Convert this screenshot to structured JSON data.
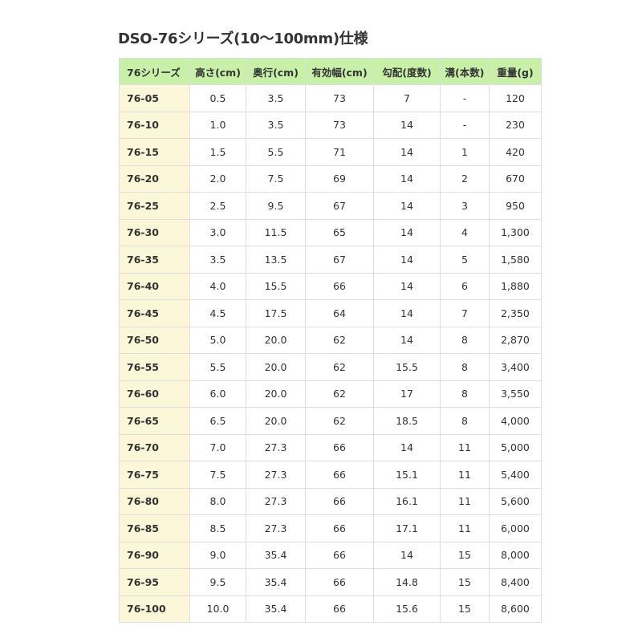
{
  "title": "DSO-76シリーズ(10～100mm)仕様",
  "headers": [
    "76シリーズ",
    "高さ(cm)",
    "奥行(cm)",
    "有効幅(cm)",
    "勾配(度数)",
    "溝(本数)",
    "重量(g)"
  ],
  "rows": [
    [
      "76-05",
      "0.5",
      "3.5",
      "73",
      "7",
      "-",
      "120"
    ],
    [
      "76-10",
      "1.0",
      "3.5",
      "73",
      "14",
      "-",
      "230"
    ],
    [
      "76-15",
      "1.5",
      "5.5",
      "71",
      "14",
      "1",
      "420"
    ],
    [
      "76-20",
      "2.0",
      "7.5",
      "69",
      "14",
      "2",
      "670"
    ],
    [
      "76-25",
      "2.5",
      "9.5",
      "67",
      "14",
      "3",
      "950"
    ],
    [
      "76-30",
      "3.0",
      "11.5",
      "65",
      "14",
      "4",
      "1,300"
    ],
    [
      "76-35",
      "3.5",
      "13.5",
      "67",
      "14",
      "5",
      "1,580"
    ],
    [
      "76-40",
      "4.0",
      "15.5",
      "66",
      "14",
      "6",
      "1,880"
    ],
    [
      "76-45",
      "4.5",
      "17.5",
      "64",
      "14",
      "7",
      "2,350"
    ],
    [
      "76-50",
      "5.0",
      "20.0",
      "62",
      "14",
      "8",
      "2,870"
    ],
    [
      "76-55",
      "5.5",
      "20.0",
      "62",
      "15.5",
      "8",
      "3,400"
    ],
    [
      "76-60",
      "6.0",
      "20.0",
      "62",
      "17",
      "8",
      "3,550"
    ],
    [
      "76-65",
      "6.5",
      "20.0",
      "62",
      "18.5",
      "8",
      "4,000"
    ],
    [
      "76-70",
      "7.0",
      "27.3",
      "66",
      "14",
      "11",
      "5,000"
    ],
    [
      "76-75",
      "7.5",
      "27.3",
      "66",
      "15.1",
      "11",
      "5,400"
    ],
    [
      "76-80",
      "8.0",
      "27.3",
      "66",
      "16.1",
      "11",
      "5,600"
    ],
    [
      "76-85",
      "8.5",
      "27.3",
      "66",
      "17.1",
      "11",
      "6,000"
    ],
    [
      "76-90",
      "9.0",
      "35.4",
      "66",
      "14",
      "15",
      "8,000"
    ],
    [
      "76-95",
      "9.5",
      "35.4",
      "66",
      "14.8",
      "15",
      "8,400"
    ],
    [
      "76-100",
      "10.0",
      "35.4",
      "66",
      "15.6",
      "15",
      "8,600"
    ]
  ],
  "colors": {
    "header_bg": "#c8f0a8",
    "model_col_bg": "#fdf7d9",
    "border": "#dedede"
  }
}
